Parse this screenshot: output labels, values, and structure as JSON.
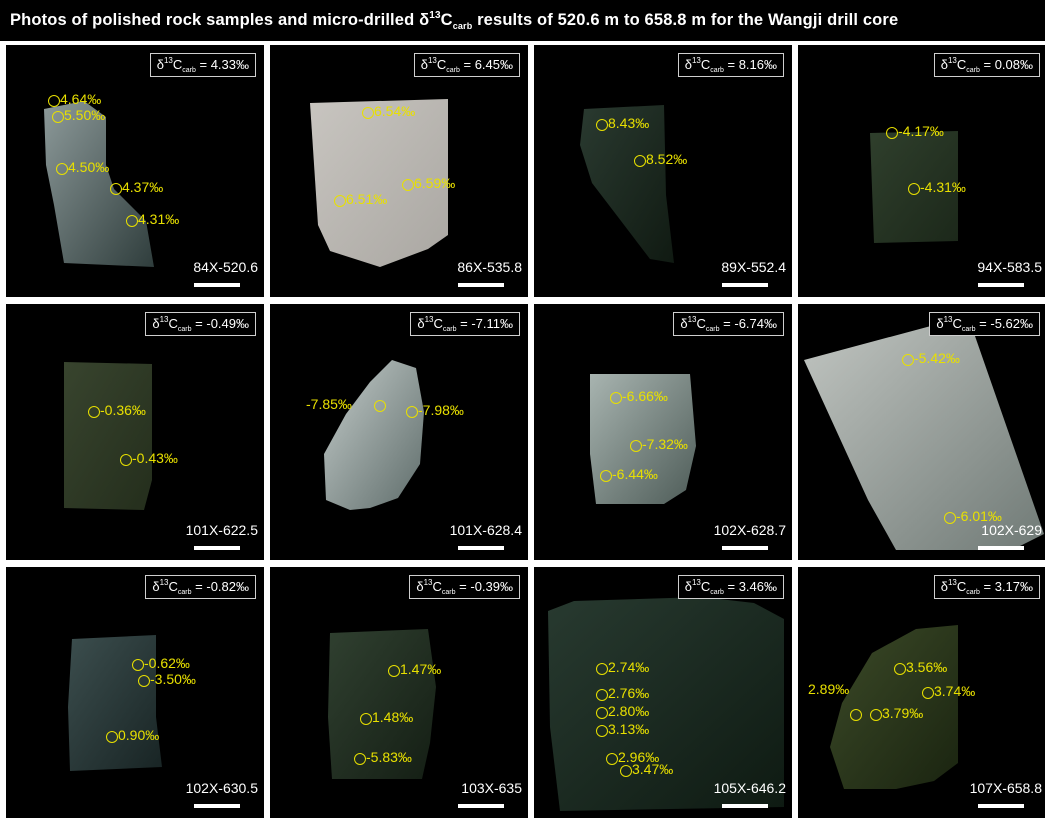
{
  "title": {
    "pre": "Photos of polished rock samples and micro-drilled δ",
    "iso": "13",
    "c": "C",
    "sub": "carb",
    "post": " results of 520.6 m to 658.8 m for the Wangji drill core"
  },
  "bulk_prefix": {
    "delta": "δ",
    "iso": "13",
    "c": "C",
    "sub": "carb",
    "eq": " = "
  },
  "panels": [
    {
      "label": "84X-520.6",
      "bulk": "4.33‰",
      "values": [
        "4.64‰",
        "5.50‰",
        "4.50‰",
        "4.37‰",
        "4.31‰"
      ]
    },
    {
      "label": "86X-535.8",
      "bulk": "6.45‰",
      "values": [
        "6.54‰",
        "6.59‰",
        "6.51‰"
      ]
    },
    {
      "label": "89X-552.4",
      "bulk": "8.16‰",
      "values": [
        "8.43‰",
        "8.52‰"
      ]
    },
    {
      "label": "94X-583.5",
      "bulk": "0.08‰",
      "values": [
        "-4.17‰",
        "-4.31‰"
      ]
    },
    {
      "label": "101X-622.5",
      "bulk": "-0.49‰",
      "values": [
        "-0.36‰",
        "-0.43‰"
      ]
    },
    {
      "label": "101X-628.4",
      "bulk": "-7.11‰",
      "values": [
        "-7.85‰",
        "-7.98‰"
      ]
    },
    {
      "label": "102X-628.7",
      "bulk": "-6.74‰",
      "values": [
        "-6.66‰",
        "-7.32‰",
        "-6.44‰"
      ]
    },
    {
      "label": "102X-629",
      "bulk": "-5.62‰",
      "values": [
        "-5.42‰",
        "-6.01‰"
      ]
    },
    {
      "label": "102X-630.5",
      "bulk": "-0.82‰",
      "values": [
        "-0.62‰",
        "-3.50‰",
        "0.90‰"
      ]
    },
    {
      "label": "103X-635",
      "bulk": "-0.39‰",
      "values": [
        "1.47‰",
        "1.48‰",
        "-5.83‰"
      ]
    },
    {
      "label": "105X-646.2",
      "bulk": "3.46‰",
      "values": [
        "2.74‰",
        "2.76‰",
        "2.80‰",
        "3.13‰",
        "2.96‰",
        "3.47‰"
      ]
    },
    {
      "label": "107X-658.8",
      "bulk": "3.17‰",
      "values": [
        "3.56‰",
        "3.74‰",
        "2.89‰",
        "3.79‰"
      ]
    }
  ],
  "colors": {
    "spot": "#e8e000",
    "background": "#000000",
    "text": "#ffffff",
    "divider": "#ffffff"
  }
}
